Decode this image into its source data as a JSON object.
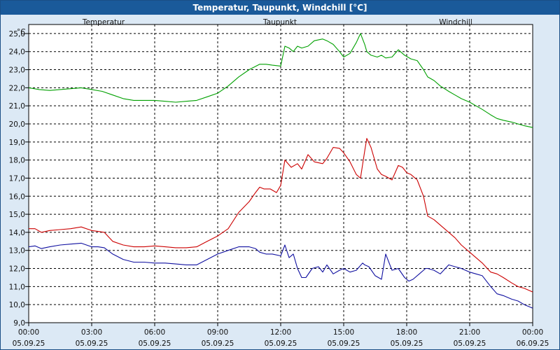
{
  "title": "Temperatur, Taupunkt, Windchill [°C]",
  "chart_data": {
    "type": "line",
    "y_unit": "°C",
    "ylim": [
      9.0,
      25.5
    ],
    "yticks": [
      "9,0",
      "10,0",
      "11,0",
      "12,0",
      "13,0",
      "14,0",
      "15,0",
      "16,0",
      "17,0",
      "18,0",
      "19,0",
      "20,0",
      "21,0",
      "22,0",
      "23,0",
      "24,0",
      "25,0"
    ],
    "xlim": [
      0,
      24
    ],
    "xticks": [
      {
        "time": "00:00",
        "date": "05.09.25"
      },
      {
        "time": "03:00",
        "date": "05.09.25"
      },
      {
        "time": "06:00",
        "date": "05.09.25"
      },
      {
        "time": "09:00",
        "date": "05.09.25"
      },
      {
        "time": "12:00",
        "date": "05.09.25"
      },
      {
        "time": "15:00",
        "date": "05.09.25"
      },
      {
        "time": "18:00",
        "date": "05.09.25"
      },
      {
        "time": "21:00",
        "date": "05.09.25"
      },
      {
        "time": "00:00",
        "date": "06.09.25"
      }
    ],
    "grid": true,
    "legend_position": "top",
    "series": [
      {
        "name": "Temperatur",
        "color": "#cc0000",
        "x": [
          0,
          0.3,
          0.6,
          1,
          1.5,
          2,
          2.5,
          3,
          3.3,
          3.6,
          4,
          4.5,
          5,
          5.5,
          6,
          6.5,
          7,
          7.5,
          8,
          8.5,
          9,
          9.5,
          10,
          10.5,
          10.8,
          11,
          11.2,
          11.5,
          11.8,
          12,
          12.2,
          12.5,
          12.8,
          13,
          13.3,
          13.6,
          14,
          14.2,
          14.5,
          14.8,
          15,
          15.3,
          15.6,
          15.8,
          16,
          16.1,
          16.3,
          16.6,
          16.8,
          17,
          17.3,
          17.6,
          17.8,
          18,
          18.2,
          18.5,
          18.8,
          19,
          19.3,
          19.6,
          20,
          20.3,
          20.6,
          21,
          21.3,
          21.6,
          22,
          22.3,
          22.6,
          23,
          23.3,
          23.6,
          24
        ],
        "y": [
          14.2,
          14.2,
          14.0,
          14.1,
          14.15,
          14.2,
          14.3,
          14.1,
          14.05,
          14.0,
          13.5,
          13.3,
          13.2,
          13.2,
          13.25,
          13.2,
          13.15,
          13.15,
          13.2,
          13.5,
          13.8,
          14.2,
          15.1,
          15.7,
          16.2,
          16.5,
          16.4,
          16.4,
          16.2,
          16.6,
          18.0,
          17.6,
          17.8,
          17.5,
          18.3,
          17.9,
          17.8,
          18.1,
          18.7,
          18.65,
          18.4,
          17.9,
          17.2,
          17.0,
          18.5,
          19.2,
          18.7,
          17.5,
          17.2,
          17.1,
          16.9,
          17.7,
          17.6,
          17.3,
          17.2,
          16.9,
          16.0,
          14.9,
          14.7,
          14.4,
          14.0,
          13.7,
          13.3,
          12.9,
          12.6,
          12.3,
          11.8,
          11.7,
          11.5,
          11.2,
          11.0,
          10.9,
          10.7
        ]
      },
      {
        "name": "Taupunkt",
        "color": "#1010a0",
        "x": [
          0,
          0.3,
          0.6,
          1,
          1.5,
          2,
          2.5,
          3,
          3.3,
          3.6,
          4,
          4.5,
          5,
          5.5,
          6,
          6.5,
          7,
          7.5,
          8,
          8.5,
          9,
          9.5,
          10,
          10.5,
          10.8,
          11,
          11.3,
          11.6,
          12,
          12.2,
          12.4,
          12.6,
          12.8,
          13,
          13.2,
          13.5,
          13.8,
          14,
          14.2,
          14.5,
          14.8,
          15,
          15.3,
          15.6,
          15.9,
          16,
          16.2,
          16.5,
          16.8,
          17,
          17.3,
          17.6,
          17.9,
          18.1,
          18.3,
          18.6,
          18.9,
          19,
          19.3,
          19.6,
          20,
          20.3,
          20.6,
          21,
          21.3,
          21.6,
          22,
          22.3,
          22.6,
          23,
          23.3,
          23.6,
          24
        ],
        "y": [
          13.2,
          13.25,
          13.1,
          13.2,
          13.3,
          13.35,
          13.4,
          13.2,
          13.2,
          13.15,
          12.8,
          12.5,
          12.35,
          12.35,
          12.3,
          12.3,
          12.25,
          12.2,
          12.2,
          12.5,
          12.8,
          13.0,
          13.2,
          13.2,
          13.1,
          12.9,
          12.8,
          12.8,
          12.7,
          13.3,
          12.6,
          12.8,
          12.0,
          11.5,
          11.5,
          12.0,
          12.1,
          11.8,
          12.2,
          11.7,
          11.9,
          12.0,
          11.8,
          11.9,
          12.3,
          12.2,
          12.1,
          11.6,
          11.4,
          12.8,
          11.9,
          12.0,
          11.5,
          11.3,
          11.4,
          11.7,
          12.0,
          12.0,
          11.9,
          11.7,
          12.2,
          12.1,
          12.0,
          11.8,
          11.7,
          11.6,
          11.0,
          10.6,
          10.5,
          10.3,
          10.2,
          10.0,
          9.8
        ]
      },
      {
        "name": "Windchill",
        "color": "#00a000",
        "x": [
          0,
          0.5,
          1,
          1.5,
          2,
          2.5,
          3,
          3.5,
          4,
          4.5,
          5,
          5.5,
          6,
          6.5,
          7,
          7.5,
          8,
          8.5,
          9,
          9.5,
          10,
          10.5,
          11,
          11.3,
          11.6,
          12,
          12.2,
          12.4,
          12.6,
          12.8,
          13,
          13.3,
          13.6,
          14,
          14.2,
          14.5,
          14.8,
          15,
          15.3,
          15.6,
          15.8,
          16,
          16.1,
          16.3,
          16.6,
          16.8,
          17,
          17.3,
          17.6,
          17.9,
          18.2,
          18.5,
          18.8,
          19,
          19.3,
          19.6,
          20,
          20.3,
          20.6,
          21,
          21.3,
          21.6,
          22,
          22.3,
          22.6,
          23,
          23.3,
          23.6,
          24
        ],
        "y": [
          22.0,
          21.9,
          21.85,
          21.9,
          21.95,
          22.0,
          21.9,
          21.8,
          21.6,
          21.4,
          21.3,
          21.3,
          21.3,
          21.25,
          21.2,
          21.25,
          21.3,
          21.5,
          21.7,
          22.1,
          22.6,
          23.0,
          23.3,
          23.3,
          23.25,
          23.2,
          24.3,
          24.2,
          24.0,
          24.3,
          24.2,
          24.3,
          24.6,
          24.7,
          24.6,
          24.4,
          24.0,
          23.7,
          23.9,
          24.5,
          25.0,
          24.4,
          24.0,
          23.8,
          23.7,
          23.8,
          23.65,
          23.7,
          24.1,
          23.8,
          23.6,
          23.5,
          23.0,
          22.6,
          22.4,
          22.1,
          21.8,
          21.6,
          21.4,
          21.2,
          21.0,
          20.8,
          20.5,
          20.3,
          20.2,
          20.1,
          20.0,
          19.9,
          19.8
        ]
      }
    ]
  }
}
